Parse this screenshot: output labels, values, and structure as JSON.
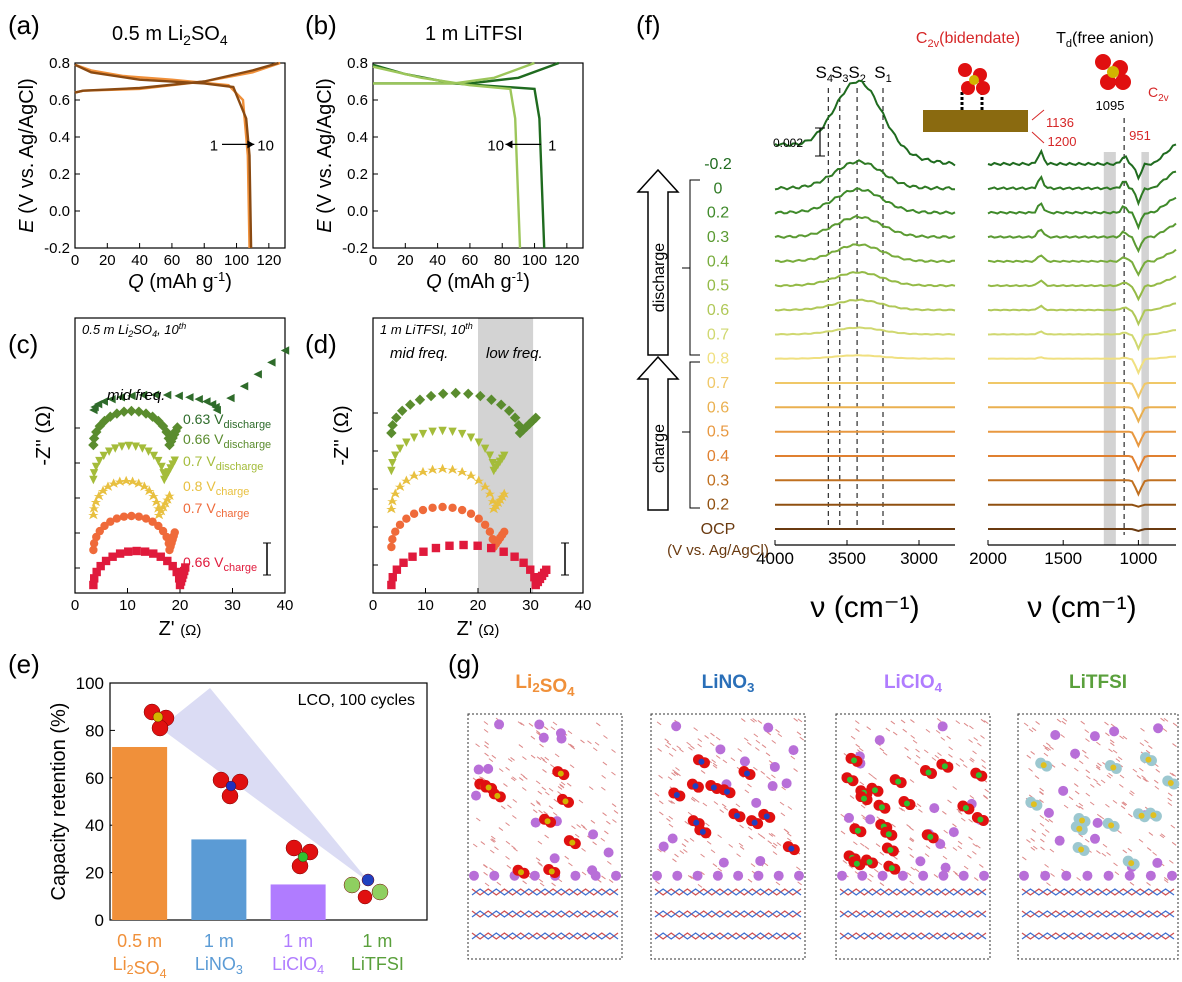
{
  "colors": {
    "orange": "#f0903a",
    "brown": "#8a4a12",
    "green_dark": "#1f6b1f",
    "green_light": "#9cc65a",
    "blue": "#5b9bd5",
    "purple": "#b07cff",
    "lgreen": "#5aa03c",
    "red": "#d62728",
    "mol_red": "#e01010",
    "mol_yel": "#d2b400",
    "li_purple": "#b86fd8",
    "shade": "#d3d3d3"
  },
  "panels": {
    "a": {
      "label": "(a)",
      "title": "0.5 m Li2SO4"
    },
    "b": {
      "label": "(b)",
      "title": "1 m LiTFSI"
    },
    "c": {
      "label": "(c)",
      "inset": "0.5 m Li2SO4, 10th",
      "note": "mid freq."
    },
    "d": {
      "label": "(d)",
      "inset": "1 m LiTFSI, 10th",
      "note_mid": "mid freq.",
      "note_low": "low freq."
    },
    "e": {
      "label": "(e)",
      "inset": "LCO, 100 cycles"
    },
    "f": {
      "label": "(f)",
      "c2v_title": "C2v(bidendate)",
      "td_title": "Td(free anion)",
      "c2v_small": "C2v",
      "scale": "0.002",
      "discharge": "discharge",
      "charge": "charge",
      "units": "(V vs. Ag/AgCl)",
      "xlabel": "ν (cm⁻¹)"
    },
    "g": {
      "label": "(g)"
    }
  },
  "chart_data": [
    {
      "panel": "a",
      "type": "line",
      "title": "0.5 m Li2SO4",
      "xlabel": "Q (mAh g⁻¹)",
      "ylabel": "E (V vs. Ag/AgCl)",
      "xlim": [
        0,
        130
      ],
      "ylim": [
        -0.2,
        0.8
      ],
      "xticks": [
        "0",
        "20",
        "40",
        "60",
        "80",
        "100",
        "120"
      ],
      "yticks": [
        "-0.2",
        "0.0",
        "0.2",
        "0.4",
        "0.6",
        "0.8"
      ],
      "annotation": {
        "from": "1",
        "to": "10"
      },
      "series": [
        {
          "name": "1",
          "color": "#f0903a",
          "discharge": [
            [
              0,
              0.79
            ],
            [
              10,
              0.76
            ],
            [
              30,
              0.73
            ],
            [
              60,
              0.71
            ],
            [
              95,
              0.68
            ],
            [
              104,
              0.6
            ],
            [
              107,
              0.3
            ],
            [
              108,
              -0.2
            ]
          ],
          "charge": [
            [
              0,
              0.64
            ],
            [
              5,
              0.65
            ],
            [
              40,
              0.66
            ],
            [
              80,
              0.7
            ],
            [
              110,
              0.75
            ],
            [
              127,
              0.8
            ]
          ]
        },
        {
          "name": "10",
          "color": "#8a4a12",
          "discharge": [
            [
              0,
              0.79
            ],
            [
              10,
              0.75
            ],
            [
              40,
              0.71
            ],
            [
              80,
              0.69
            ],
            [
              98,
              0.67
            ],
            [
              106,
              0.5
            ],
            [
              108,
              0.3
            ],
            [
              109,
              -0.2
            ]
          ],
          "charge": [
            [
              0,
              0.64
            ],
            [
              5,
              0.65
            ],
            [
              40,
              0.665
            ],
            [
              80,
              0.7
            ],
            [
              110,
              0.76
            ],
            [
              126,
              0.8
            ]
          ]
        }
      ]
    },
    {
      "panel": "b",
      "type": "line",
      "title": "1 m LiTFSI",
      "xlabel": "Q (mAh g⁻¹)",
      "ylabel": "E (V vs. Ag/AgCl)",
      "xlim": [
        0,
        130
      ],
      "ylim": [
        -0.2,
        0.8
      ],
      "xticks": [
        "0",
        "20",
        "40",
        "60",
        "80",
        "100",
        "120"
      ],
      "yticks": [
        "-0.2",
        "0.0",
        "0.2",
        "0.4",
        "0.6",
        "0.8"
      ],
      "annotation": {
        "from": "10",
        "to": "1"
      },
      "series": [
        {
          "name": "1",
          "color": "#1f6b1f",
          "discharge": [
            [
              0,
              0.79
            ],
            [
              20,
              0.74
            ],
            [
              50,
              0.69
            ],
            [
              100,
              0.66
            ],
            [
              103,
              0.5
            ],
            [
              106,
              -0.2
            ]
          ],
          "charge": [
            [
              0,
              0.69
            ],
            [
              5,
              0.69
            ],
            [
              60,
              0.69
            ],
            [
              90,
              0.72
            ],
            [
              115,
              0.8
            ]
          ]
        },
        {
          "name": "10",
          "color": "#9cc65a",
          "discharge": [
            [
              0,
              0.78
            ],
            [
              30,
              0.72
            ],
            [
              60,
              0.68
            ],
            [
              85,
              0.66
            ],
            [
              88,
              0.5
            ],
            [
              91,
              -0.2
            ]
          ],
          "charge": [
            [
              0,
              0.69
            ],
            [
              5,
              0.69
            ],
            [
              50,
              0.69
            ],
            [
              75,
              0.72
            ],
            [
              100,
              0.8
            ]
          ]
        }
      ]
    },
    {
      "panel": "c",
      "type": "scatter",
      "xlabel": "Z' (Ω)",
      "ylabel": "-Z'' (Ω)",
      "xlim": [
        0,
        40
      ],
      "xticks": [
        "0",
        "10",
        "20",
        "30",
        "40"
      ],
      "series": [
        {
          "name": "0.63 V discharge",
          "color": "#2e6b2a",
          "marker": "tri-left",
          "offset": 5,
          "arc_end": 27,
          "tail_end": 40,
          "tail_rise": 1.7
        },
        {
          "name": "0.66 V discharge",
          "color": "#5a8c2e",
          "marker": "diamond",
          "offset": 4,
          "arc_end": 18,
          "tail_end": 19.5,
          "tail_rise": 0.5
        },
        {
          "name": "0.7 V discharge",
          "color": "#a4bc3a",
          "marker": "tri-down",
          "offset": 3,
          "arc_end": 17,
          "tail_end": 19,
          "tail_rise": 0.55
        },
        {
          "name": "0.8 V charge",
          "color": "#e8c040",
          "marker": "star",
          "offset": 2,
          "arc_end": 16,
          "tail_end": 18,
          "tail_rise": 0.55
        },
        {
          "name": "0.7 V charge",
          "color": "#ef6a3a",
          "marker": "circle",
          "offset": 1,
          "arc_end": 18,
          "tail_end": 19,
          "tail_rise": 0.5
        },
        {
          "name": "0.66 V charge",
          "color": "#e01a3c",
          "marker": "square",
          "offset": 0,
          "arc_end": 20,
          "tail_end": 21,
          "tail_rise": 0.5
        }
      ],
      "legend": [
        {
          "v": "0.63 V",
          "sub": "discharge",
          "color": "#2e6b2a"
        },
        {
          "v": "0.66 V",
          "sub": "discharge",
          "color": "#5a8c2e"
        },
        {
          "v": "0.7 V",
          "sub": "discharge",
          "color": "#a4bc3a"
        },
        {
          "v": "0.8 V",
          "sub": "charge",
          "color": "#e8c040"
        },
        {
          "v": "0.7 V",
          "sub": "charge",
          "color": "#ef6a3a"
        },
        {
          "v": "0.66 V",
          "sub": "charge",
          "color": "#e01a3c"
        }
      ]
    },
    {
      "panel": "d",
      "type": "scatter",
      "xlabel": "Z' (Ω)",
      "ylabel": "-Z'' (Ω)",
      "xlim": [
        0,
        40
      ],
      "xticks": [
        "0",
        "10",
        "20",
        "30",
        "40"
      ],
      "shaded_x": [
        20,
        30.5
      ],
      "series": [
        {
          "color": "#5a8c2e",
          "marker": "diamond",
          "offset": 4,
          "arc_end": 28,
          "tail_end": 31,
          "tail_rise": 0.4
        },
        {
          "color": "#a4bc3a",
          "marker": "tri-down",
          "offset": 3,
          "arc_end": 23,
          "tail_end": 25,
          "tail_rise": 0.4
        },
        {
          "color": "#e8c040",
          "marker": "star",
          "offset": 2,
          "arc_end": 23,
          "tail_end": 25,
          "tail_rise": 0.4
        },
        {
          "color": "#ef6a3a",
          "marker": "circle",
          "offset": 1,
          "arc_end": 23,
          "tail_end": 25,
          "tail_rise": 0.4
        },
        {
          "color": "#e01a3c",
          "marker": "square",
          "offset": 0,
          "arc_end": 31,
          "tail_end": 33,
          "tail_rise": 0.4
        }
      ]
    },
    {
      "panel": "e",
      "type": "bar",
      "ylabel": "Capacity retention (%)",
      "ylim": [
        0,
        100
      ],
      "yticks": [
        "0",
        "20",
        "40",
        "60",
        "80",
        "100"
      ],
      "categories": [
        {
          "top": "0.5 m",
          "bottom": "Li2SO4",
          "color": "#f0903a"
        },
        {
          "top": "1 m",
          "bottom": "LiNO3",
          "color": "#5b9bd5"
        },
        {
          "top": "1 m",
          "bottom": "LiClO4",
          "color": "#b07cff"
        },
        {
          "top": "1 m",
          "bottom": "LiTFSI",
          "color": "#5aa03c"
        }
      ],
      "values": [
        73,
        34,
        15,
        0
      ]
    },
    {
      "panel": "f",
      "type": "line",
      "xlabel": "ν (cm⁻¹)",
      "left_xlim": [
        4000,
        2750
      ],
      "left_xticks": [
        "4000",
        "3500",
        "3000"
      ],
      "right_xlim": [
        2000,
        750
      ],
      "right_xticks": [
        "2000",
        "1500",
        "1000"
      ],
      "dashed_labels": [
        "S4",
        "S3",
        "S2",
        "S1"
      ],
      "dashed_x": [
        3630,
        3550,
        3430,
        3250
      ],
      "peak_labels": [
        "1095",
        "1136",
        "1200",
        "951"
      ],
      "band_x": [
        [
          1230,
          1150
        ],
        [
          980,
          930
        ]
      ],
      "potentials": [
        "-0.2",
        "0",
        "0.2",
        "0.3",
        "0.4",
        "0.5",
        "0.6",
        "0.7",
        "0.8",
        "0.7",
        "0.6",
        "0.5",
        "0.4",
        "0.3",
        "0.2",
        "OCP"
      ],
      "trace_colors": [
        "#1f6b1f",
        "#2f7a24",
        "#3f8a2a",
        "#5a9a32",
        "#78ac3c",
        "#94ba46",
        "#b0c858",
        "#d0d870",
        "#f0e080",
        "#f0c868",
        "#eab050",
        "#e89840",
        "#e08030",
        "#c07020",
        "#905010",
        "#6a3a10"
      ]
    },
    {
      "panel": "g",
      "type": "other",
      "titles": [
        {
          "text": "Li2SO4",
          "color": "#f0903a"
        },
        {
          "text": "LiNO3",
          "color": "#2a6fb8"
        },
        {
          "text": "LiClO4",
          "color": "#b07cff"
        },
        {
          "text": "LiTFSI",
          "color": "#5aa03c"
        }
      ]
    }
  ]
}
